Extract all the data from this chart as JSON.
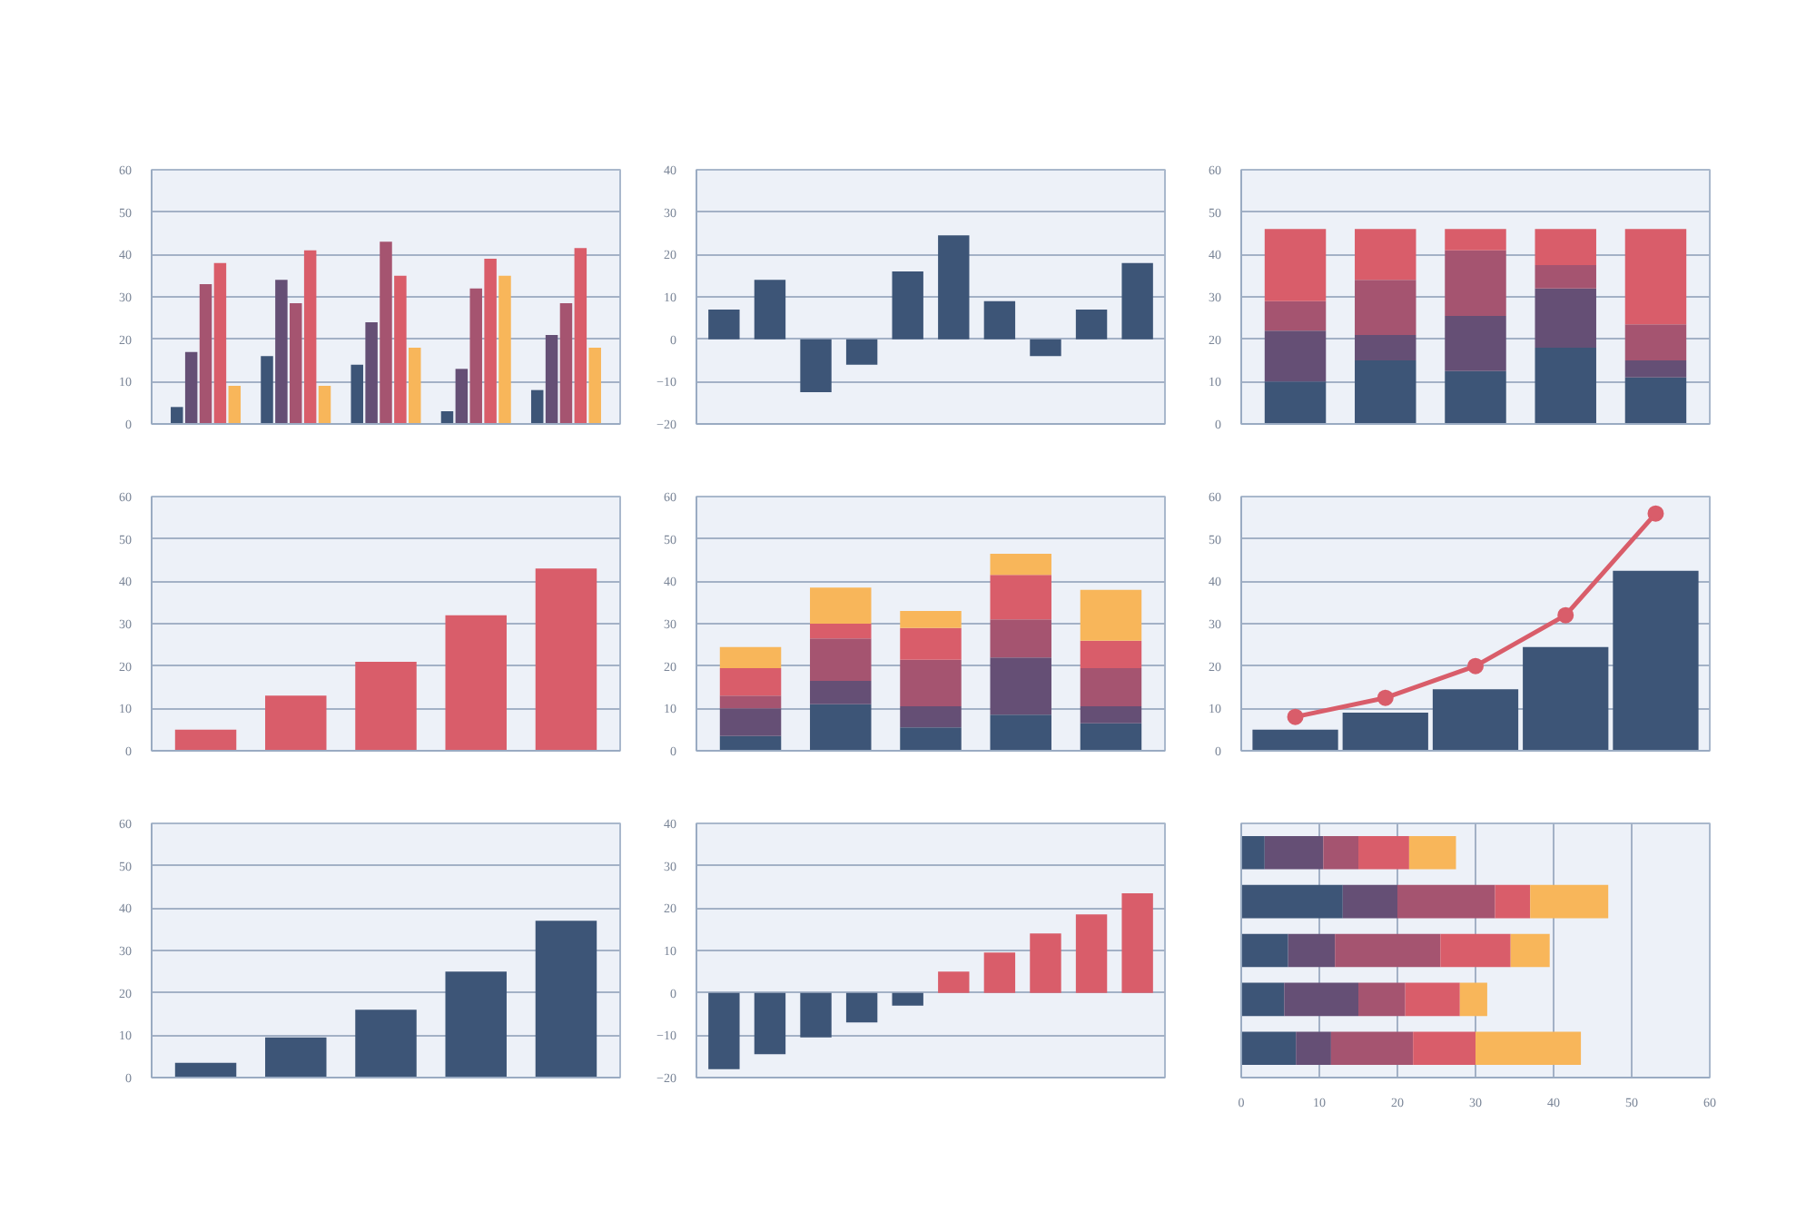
{
  "chart_data": [
    {
      "type": "bar",
      "categories": [
        null,
        null,
        null,
        null,
        null
      ],
      "ylim": [
        0,
        60
      ],
      "yticks": [
        0,
        10,
        20,
        30,
        40,
        50,
        60
      ],
      "grid": "y",
      "tick_labels": "y",
      "series": [
        {
          "color": "#3d5577",
          "values": [
            4,
            16,
            14,
            3,
            8
          ]
        },
        {
          "color": "#654f75",
          "values": [
            17,
            34,
            24,
            13,
            21
          ]
        },
        {
          "color": "#a55470",
          "values": [
            33,
            28.5,
            43,
            32,
            28.5
          ]
        },
        {
          "color": "#d95d6a",
          "values": [
            38,
            41,
            35,
            39,
            41.5
          ]
        },
        {
          "color": "#f8b65a",
          "values": [
            9,
            9,
            18,
            35,
            18
          ]
        }
      ]
    },
    {
      "type": "bar",
      "categories": [
        null,
        null,
        null,
        null,
        null,
        null,
        null,
        null,
        null,
        null
      ],
      "ylim": [
        -20,
        40
      ],
      "yticks": [
        -20,
        -10,
        0,
        10,
        20,
        30,
        40
      ],
      "grid": "y",
      "tick_labels": "y",
      "series": [
        {
          "color": "#3d5577",
          "values": [
            7,
            14,
            -12.5,
            -6,
            16,
            24.5,
            9,
            -4,
            7,
            18
          ]
        }
      ]
    },
    {
      "type": "bar",
      "stacked": true,
      "categories": [
        null,
        null,
        null,
        null,
        null
      ],
      "ylim": [
        0,
        60
      ],
      "yticks": [
        0,
        10,
        20,
        30,
        40,
        50,
        60
      ],
      "grid": "y",
      "tick_labels": "y",
      "series": [
        {
          "color": "#3d5577",
          "values": [
            10,
            15,
            12.5,
            18,
            11
          ]
        },
        {
          "color": "#654f75",
          "values": [
            12,
            6,
            13,
            14,
            4
          ]
        },
        {
          "color": "#a55470",
          "values": [
            7,
            13,
            15.5,
            5.5,
            8.5
          ]
        },
        {
          "color": "#d95d6a",
          "values": [
            17,
            12,
            5,
            8.5,
            22.5
          ]
        }
      ]
    },
    {
      "type": "bar",
      "categories": [
        null,
        null,
        null,
        null,
        null
      ],
      "ylim": [
        0,
        60
      ],
      "yticks": [
        0,
        10,
        20,
        30,
        40,
        50,
        60
      ],
      "grid": "y",
      "tick_labels": "y",
      "series": [
        {
          "color": "#d95d6a",
          "values": [
            5,
            13,
            21,
            32,
            43
          ]
        }
      ]
    },
    {
      "type": "bar",
      "stacked": true,
      "categories": [
        null,
        null,
        null,
        null,
        null
      ],
      "ylim": [
        0,
        60
      ],
      "yticks": [
        0,
        10,
        20,
        30,
        40,
        50,
        60
      ],
      "grid": "y",
      "tick_labels": "y",
      "series": [
        {
          "color": "#3d5577",
          "values": [
            3.5,
            11,
            5.5,
            8.5,
            6.5
          ]
        },
        {
          "color": "#654f75",
          "values": [
            6.5,
            5.5,
            5,
            13.5,
            4
          ]
        },
        {
          "color": "#a55470",
          "values": [
            3,
            10,
            11,
            9,
            9
          ]
        },
        {
          "color": "#d95d6a",
          "values": [
            6.5,
            3.5,
            7.5,
            10.5,
            6.5
          ]
        },
        {
          "color": "#f8b65a",
          "values": [
            5,
            8.5,
            4,
            5,
            12
          ]
        }
      ]
    },
    {
      "type": "bar",
      "categories": [
        null,
        null,
        null,
        null,
        null
      ],
      "ylim": [
        0,
        60
      ],
      "yticks": [
        0,
        10,
        20,
        30,
        40,
        50,
        60
      ],
      "grid": "y",
      "tick_labels": "y",
      "marker": "circle",
      "series": [
        {
          "type": "bar",
          "color": "#3d5577",
          "values": [
            5,
            9,
            14.5,
            24.5,
            42.5
          ]
        },
        {
          "type": "line",
          "color": "#d95d6a",
          "values": [
            8,
            12.5,
            20,
            32,
            56
          ]
        }
      ]
    },
    {
      "type": "bar",
      "categories": [
        null,
        null,
        null,
        null,
        null
      ],
      "ylim": [
        0,
        60
      ],
      "yticks": [
        0,
        10,
        20,
        30,
        40,
        50,
        60
      ],
      "grid": "y",
      "tick_labels": "y",
      "series": [
        {
          "color": "#3d5577",
          "values": [
            3.5,
            9.5,
            16,
            25,
            37
          ]
        }
      ]
    },
    {
      "type": "bar",
      "categories": [
        null,
        null,
        null,
        null,
        null,
        null,
        null,
        null,
        null,
        null
      ],
      "ylim": [
        -20,
        40
      ],
      "yticks": [
        -20,
        -10,
        0,
        10,
        20,
        30,
        40
      ],
      "grid": "y",
      "tick_labels": "y",
      "series": [
        {
          "colors": [
            "#3d5577",
            "#3d5577",
            "#3d5577",
            "#3d5577",
            "#3d5577",
            "#d95d6a",
            "#d95d6a",
            "#d95d6a",
            "#d95d6a",
            "#d95d6a"
          ],
          "values": [
            -18,
            -14.5,
            -10.5,
            -7,
            -3,
            5,
            9.5,
            14,
            18.5,
            23.5
          ]
        }
      ]
    },
    {
      "type": "bar",
      "stacked": true,
      "orientation": "horizontal",
      "categories": [
        null,
        null,
        null,
        null,
        null
      ],
      "xlim": [
        0,
        60
      ],
      "xticks": [
        0,
        10,
        20,
        30,
        40,
        50,
        60
      ],
      "grid": "x",
      "tick_labels": "x",
      "series": [
        {
          "color": "#3d5577",
          "values": [
            3,
            13,
            6,
            5.5,
            7
          ]
        },
        {
          "color": "#654f75",
          "values": [
            7.5,
            7,
            6,
            9.5,
            4.5
          ]
        },
        {
          "color": "#a55470",
          "values": [
            4.5,
            12.5,
            13.5,
            6,
            10.5
          ]
        },
        {
          "color": "#d95d6a",
          "values": [
            6.5,
            4.5,
            9,
            7,
            8
          ]
        },
        {
          "color": "#f8b65a",
          "values": [
            6,
            10,
            5,
            3.5,
            13.5
          ]
        }
      ]
    }
  ]
}
